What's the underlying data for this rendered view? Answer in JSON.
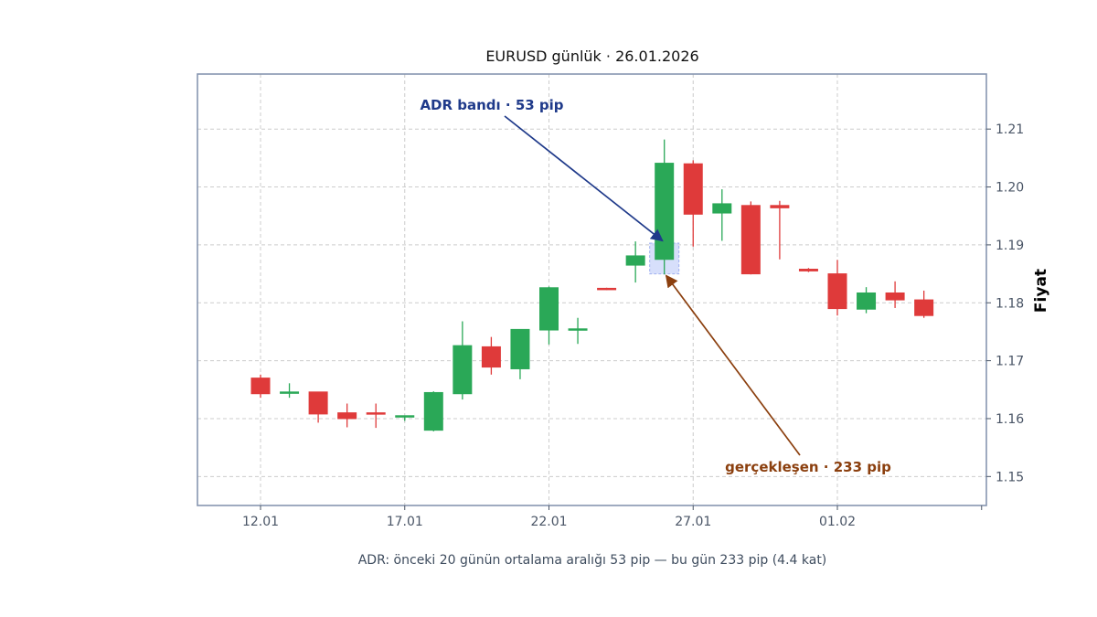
{
  "chart_data": {
    "type": "candlestick",
    "title": "EURUSD günlük · 26.01.2026",
    "ylabel": "Fiyat",
    "xlabel": "",
    "caption": "ADR: önceki 20 günün ortalama aralığı 53 pip — bu gün 233 pip (4.4 kat)",
    "ylim": [
      1.145,
      1.2195
    ],
    "y_ticks": [
      "1.15",
      "1.16",
      "1.17",
      "1.18",
      "1.19",
      "1.20",
      "1.21"
    ],
    "x_ticks": [
      "12.01",
      "17.01",
      "22.01",
      "27.01",
      "01.02"
    ],
    "grid": true,
    "up_color": "#2aa857",
    "down_color": "#df3a3a",
    "candles": [
      {
        "date": "12.01",
        "open": 1.167,
        "high": 1.1676,
        "low": 1.1636,
        "close": 1.1643
      },
      {
        "date": "13.01",
        "open": 1.1645,
        "high": 1.1661,
        "low": 1.1636,
        "close": 1.1646
      },
      {
        "date": "14.01",
        "open": 1.1646,
        "high": 1.1646,
        "low": 1.1593,
        "close": 1.1608
      },
      {
        "date": "15.01",
        "open": 1.161,
        "high": 1.1626,
        "low": 1.1585,
        "close": 1.16
      },
      {
        "date": "16.01",
        "open": 1.161,
        "high": 1.1626,
        "low": 1.1584,
        "close": 1.1608
      },
      {
        "date": "17.01",
        "open": 1.1603,
        "high": 1.1605,
        "low": 1.1596,
        "close": 1.1605
      },
      {
        "date": "18.01",
        "open": 1.158,
        "high": 1.1647,
        "low": 1.1578,
        "close": 1.1645
      },
      {
        "date": "19.01",
        "open": 1.1643,
        "high": 1.1768,
        "low": 1.1633,
        "close": 1.1726
      },
      {
        "date": "20.01",
        "open": 1.1724,
        "high": 1.1741,
        "low": 1.1676,
        "close": 1.1689
      },
      {
        "date": "21.01",
        "open": 1.1686,
        "high": 1.1754,
        "low": 1.1668,
        "close": 1.1754
      },
      {
        "date": "22.01",
        "open": 1.1753,
        "high": 1.1828,
        "low": 1.1728,
        "close": 1.1826
      },
      {
        "date": "23.01",
        "open": 1.1753,
        "high": 1.1774,
        "low": 1.1729,
        "close": 1.1755
      },
      {
        "date": "24.01",
        "open": 1.1825,
        "high": 1.1826,
        "low": 1.1822,
        "close": 1.1823
      },
      {
        "date": "25.01",
        "open": 1.1865,
        "high": 1.1906,
        "low": 1.1835,
        "close": 1.1881
      },
      {
        "date": "26.01",
        "open": 1.1875,
        "high": 1.2082,
        "low": 1.1849,
        "close": 1.2041
      },
      {
        "date": "27.01",
        "open": 1.204,
        "high": 1.2046,
        "low": 1.1897,
        "close": 1.1953
      },
      {
        "date": "28.01",
        "open": 1.1955,
        "high": 1.1996,
        "low": 1.1907,
        "close": 1.1971
      },
      {
        "date": "29.01",
        "open": 1.1968,
        "high": 1.1975,
        "low": 1.1849,
        "close": 1.185
      },
      {
        "date": "30.01",
        "open": 1.1968,
        "high": 1.1976,
        "low": 1.1875,
        "close": 1.1964
      },
      {
        "date": "31.01",
        "open": 1.1858,
        "high": 1.186,
        "low": 1.1853,
        "close": 1.1855
      },
      {
        "date": "01.02",
        "open": 1.185,
        "high": 1.1874,
        "low": 1.1778,
        "close": 1.179
      },
      {
        "date": "02.02",
        "open": 1.1789,
        "high": 1.1827,
        "low": 1.1782,
        "close": 1.1817
      },
      {
        "date": "03.02",
        "open": 1.1817,
        "high": 1.1837,
        "low": 1.1791,
        "close": 1.1805
      },
      {
        "date": "04.02",
        "open": 1.1805,
        "high": 1.1821,
        "low": 1.1774,
        "close": 1.1778
      }
    ],
    "adr_band": {
      "date": "26.01",
      "low": 1.185,
      "high": 1.1903,
      "color": "#c9d4fa"
    },
    "annotations": [
      {
        "text": "ADR bandı · 53 pip",
        "color": "#1f3a8a",
        "target_date": "26.01",
        "target_price": 1.1907
      },
      {
        "text": "gerçekleşen · 233 pip",
        "color": "#8b3f0e",
        "target_date": "26.01",
        "target_price": 1.1847
      }
    ]
  }
}
